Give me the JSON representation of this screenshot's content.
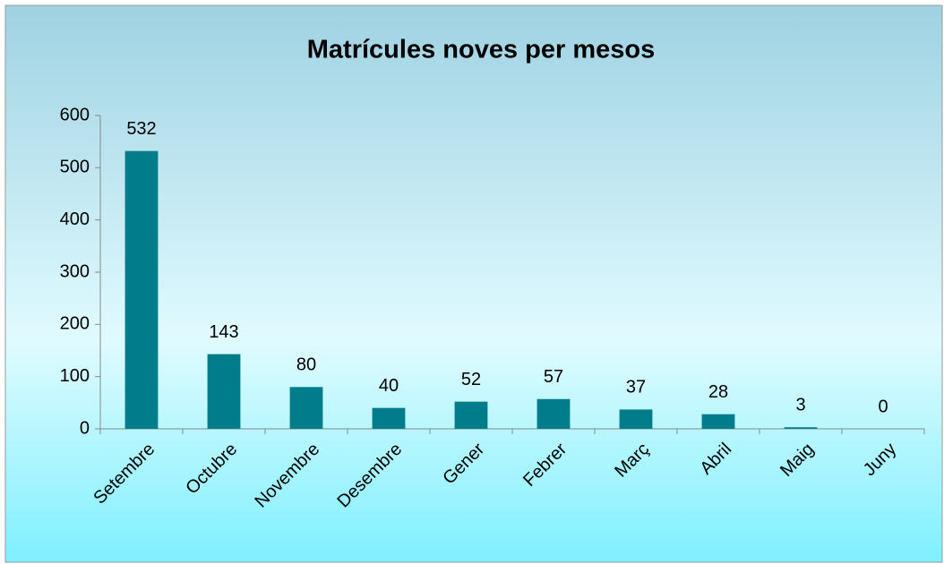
{
  "chart_data": {
    "type": "bar",
    "title": "Matrícules noves per mesos",
    "categories": [
      "Setembre",
      "Octubre",
      "Novembre",
      "Desembre",
      "Gener",
      "Febrer",
      "Març",
      "Abril",
      "Maig",
      "Juny"
    ],
    "values": [
      532,
      143,
      80,
      40,
      52,
      57,
      37,
      28,
      3,
      0
    ],
    "color": "#007c8a",
    "ylim": [
      0,
      600
    ],
    "yticks": [
      0,
      100,
      200,
      300,
      400,
      500,
      600
    ],
    "grid": false
  }
}
